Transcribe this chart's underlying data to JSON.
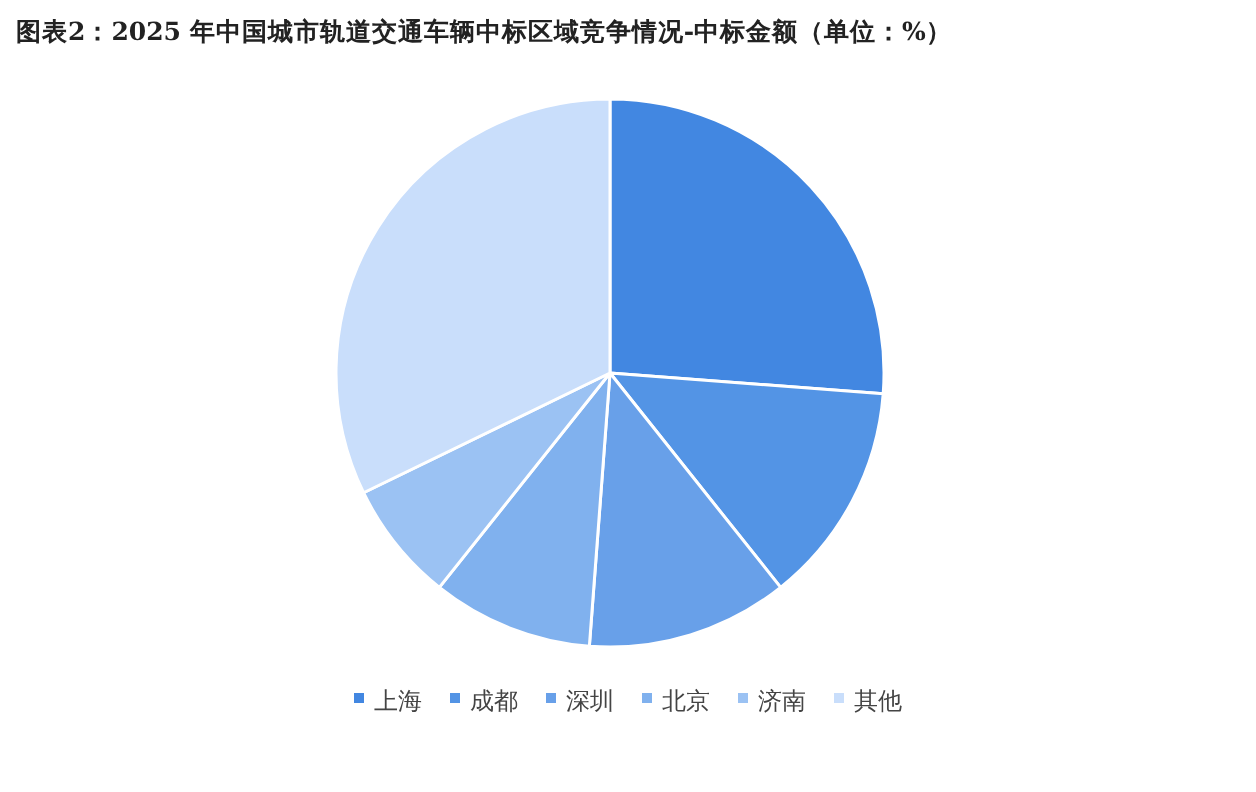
{
  "chart_data": {
    "type": "pie",
    "title": "图表2：2025 年中国城市轨道交通车辆中标区域竞争情况-中标金额（单位：%）",
    "categories": [
      "上海",
      "成都",
      "深圳",
      "北京",
      "济南",
      "其他"
    ],
    "values": [
      26.2,
      13.1,
      11.9,
      9.5,
      7.1,
      32.2
    ],
    "colors": [
      "#4287e1",
      "#5394e5",
      "#68a0e9",
      "#80b1ee",
      "#9bc2f3",
      "#c9defb"
    ],
    "legend": "bottom"
  }
}
